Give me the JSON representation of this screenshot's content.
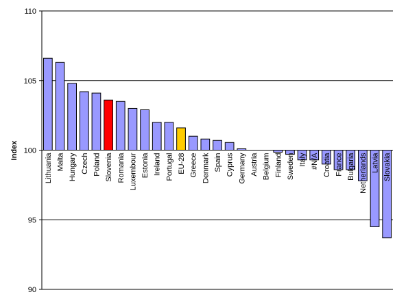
{
  "chart_data": {
    "type": "bar",
    "ylabel": "Index",
    "ylim": [
      90,
      110
    ],
    "yticks": [
      "90",
      "95",
      "100",
      "105",
      "110"
    ],
    "gridlines": [
      95,
      105,
      110
    ],
    "baseline": 100,
    "bar_color": "#9999ff",
    "bar_outline": "#000000",
    "highlight_colors": {
      "Slovenia": "#ff0000",
      "EU-28": "#ffcc00"
    },
    "categories": [
      "Lithuania",
      "Malta",
      "Hungary",
      "Czech",
      "Poland",
      "Slovenia",
      "Romania",
      "Luxembour",
      "Estonia",
      "Ireland",
      "Portugal",
      "EU-28",
      "Greece",
      "Denmark",
      "Spain",
      "Cyprus",
      "Germany",
      "Austria",
      "Belgium",
      "Finland",
      "Sweden",
      "Italy",
      "#N/A",
      "Croatia",
      "France",
      "Bulgaria",
      "Netherlands",
      "Latvia",
      "Slovakia"
    ],
    "values": [
      106.6,
      106.3,
      104.8,
      104.2,
      104.1,
      103.6,
      103.5,
      103.0,
      102.9,
      102.0,
      102.0,
      101.6,
      101.0,
      100.8,
      100.7,
      100.55,
      100.1,
      100.0,
      100.0,
      99.85,
      99.7,
      99.3,
      99.3,
      99.0,
      98.6,
      98.6,
      97.8,
      94.5,
      93.7
    ]
  }
}
